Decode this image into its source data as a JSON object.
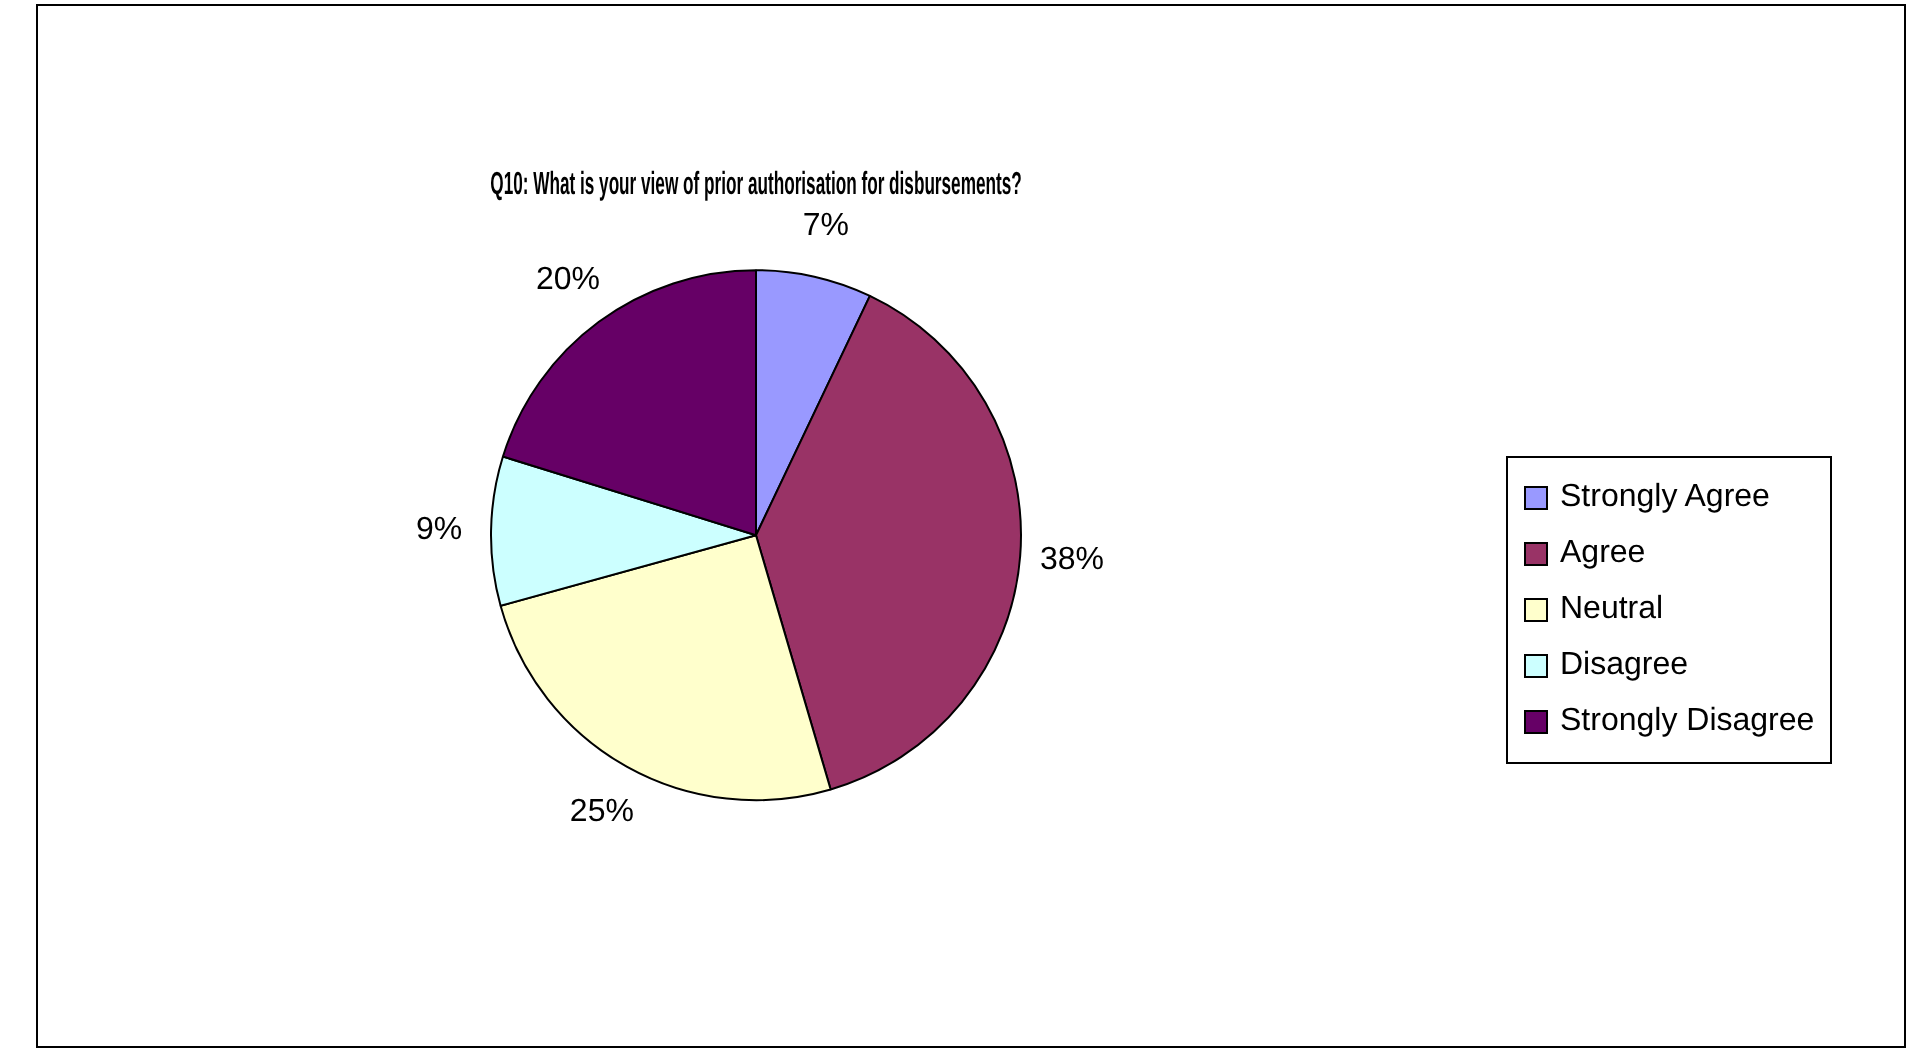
{
  "chart_data": {
    "type": "pie",
    "title": "Q10: What is your view of prior authorisation for disbursements?",
    "categories": [
      "Strongly Agree",
      "Agree",
      "Neutral",
      "Disagree",
      "Strongly Disagree"
    ],
    "values": [
      7,
      38,
      25,
      9,
      20
    ],
    "colors": [
      "#9999ff",
      "#993366",
      "#ffffcc",
      "#ccffff",
      "#660066"
    ],
    "value_labels": [
      "7%",
      "38%",
      "25%",
      "9%",
      "20%"
    ],
    "legend": "right"
  }
}
